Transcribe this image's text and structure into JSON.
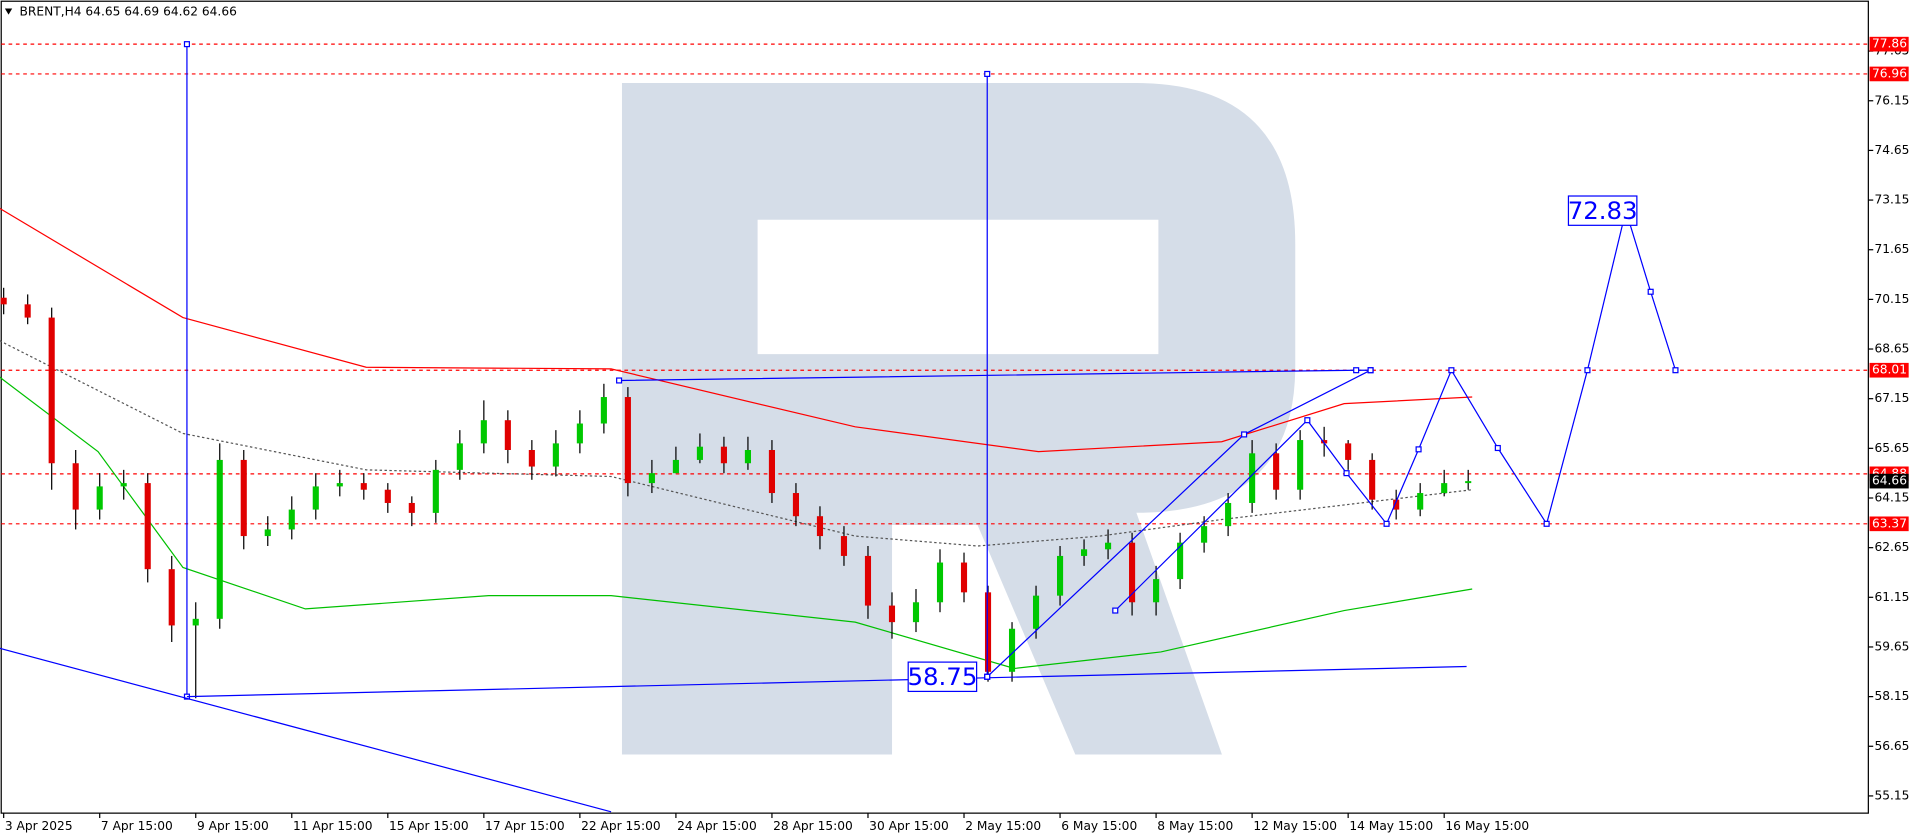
{
  "chart_data": {
    "type": "candlestick",
    "title": "BRENT,H4  64.65 64.69 64.62 64.66",
    "xlim": [
      0,
      233
    ],
    "xticks": [
      {
        "value": 0,
        "label": "3 Apr 2025"
      },
      {
        "value": 12,
        "label": "7 Apr 15:00"
      },
      {
        "value": 24,
        "label": "9 Apr 15:00"
      },
      {
        "value": 36,
        "label": "11 Apr 15:00"
      },
      {
        "value": 48,
        "label": "15 Apr 15:00"
      },
      {
        "value": 60,
        "label": "17 Apr 15:00"
      },
      {
        "value": 72,
        "label": "22 Apr 15:00"
      },
      {
        "value": 84,
        "label": "24 Apr 15:00"
      },
      {
        "value": 96,
        "label": "28 Apr 15:00"
      },
      {
        "value": 108,
        "label": "30 Apr 15:00"
      },
      {
        "value": 120,
        "label": "2 May 15:00"
      },
      {
        "value": 132,
        "label": "6 May 15:00"
      },
      {
        "value": 144,
        "label": "8 May 15:00"
      },
      {
        "value": 156,
        "label": "12 May 15:00"
      },
      {
        "value": 168,
        "label": "14 May 15:00"
      },
      {
        "value": 180,
        "label": "16 May 15:00"
      }
    ],
    "ylim": [
      54.63,
      79.12
    ],
    "yticks": [
      55.15,
      56.65,
      58.15,
      59.65,
      61.15,
      62.65,
      64.15,
      65.65,
      67.15,
      68.65,
      70.15,
      71.65,
      73.15,
      74.65,
      76.15,
      77.65
    ],
    "candles": {
      "up_color": "#00c800",
      "down_color": "#e00000",
      "x": [
        0,
        3,
        6,
        9,
        12,
        15,
        18,
        21,
        24,
        27,
        30,
        33,
        36,
        39,
        42,
        45,
        48,
        51,
        54,
        57,
        60,
        63,
        66,
        69,
        72,
        75,
        78,
        81,
        84,
        87,
        90,
        93,
        96,
        99,
        102,
        105,
        108,
        111,
        114,
        117,
        120,
        123,
        126,
        129,
        132,
        135,
        138,
        141,
        144,
        147,
        150,
        153,
        156,
        159,
        162,
        165,
        168,
        171,
        174,
        177,
        180,
        183
      ],
      "open": [
        70.2,
        70.0,
        69.6,
        65.2,
        63.8,
        64.5,
        64.6,
        62.0,
        60.3,
        60.5,
        65.3,
        63.0,
        63.2,
        63.8,
        64.5,
        64.6,
        64.4,
        64.0,
        63.7,
        65.0,
        65.8,
        66.5,
        65.6,
        65.1,
        65.8,
        66.4,
        67.2,
        64.6,
        64.9,
        65.3,
        65.7,
        65.2,
        65.6,
        64.3,
        63.6,
        63.0,
        62.4,
        60.9,
        60.4,
        61.0,
        62.2,
        61.3,
        58.9,
        60.2,
        61.2,
        62.4,
        62.6,
        62.8,
        61.0,
        61.7,
        62.8,
        63.3,
        64.0,
        65.5,
        64.4,
        65.9,
        65.8,
        65.3,
        64.1,
        63.8,
        64.3,
        64.6
      ],
      "high": [
        70.5,
        70.3,
        69.9,
        65.6,
        64.9,
        65.0,
        64.9,
        62.4,
        61.0,
        65.8,
        65.6,
        63.6,
        64.2,
        64.9,
        65.0,
        64.9,
        64.6,
        64.2,
        65.3,
        66.2,
        67.1,
        66.8,
        65.9,
        66.2,
        66.8,
        67.6,
        67.5,
        65.3,
        65.7,
        66.1,
        66.0,
        66.0,
        65.9,
        64.6,
        63.9,
        63.3,
        62.7,
        61.3,
        61.4,
        62.6,
        62.5,
        61.5,
        60.4,
        61.5,
        62.7,
        62.9,
        63.2,
        63.1,
        62.1,
        63.1,
        63.6,
        64.3,
        65.9,
        65.8,
        66.2,
        66.3,
        65.9,
        65.5,
        64.4,
        64.6,
        65.0,
        65.0
      ],
      "low": [
        69.7,
        69.4,
        64.4,
        63.2,
        63.5,
        64.1,
        61.6,
        59.8,
        58.1,
        60.2,
        62.6,
        62.7,
        62.9,
        63.5,
        64.2,
        64.1,
        63.7,
        63.3,
        63.4,
        64.7,
        65.5,
        65.2,
        64.7,
        64.8,
        65.5,
        66.1,
        64.2,
        64.3,
        64.9,
        65.2,
        64.9,
        65.0,
        64.0,
        63.3,
        62.6,
        62.1,
        60.5,
        59.9,
        60.1,
        60.7,
        61.0,
        58.6,
        58.6,
        59.9,
        60.9,
        62.1,
        62.3,
        60.6,
        60.6,
        61.4,
        62.5,
        63.0,
        63.7,
        64.1,
        64.1,
        65.4,
        65.0,
        63.8,
        63.5,
        63.6,
        64.2,
        64.4
      ],
      "close": [
        70.0,
        69.6,
        65.2,
        63.8,
        64.5,
        64.6,
        62.0,
        60.3,
        60.5,
        65.3,
        63.0,
        63.2,
        63.8,
        64.5,
        64.6,
        64.4,
        64.0,
        63.7,
        65.0,
        65.8,
        66.5,
        65.6,
        65.1,
        65.8,
        66.4,
        67.2,
        64.6,
        64.9,
        65.3,
        65.7,
        65.2,
        65.6,
        64.3,
        63.6,
        63.0,
        62.4,
        60.9,
        60.4,
        61.0,
        62.2,
        61.3,
        58.9,
        60.2,
        61.2,
        62.4,
        62.6,
        62.8,
        61.0,
        61.7,
        62.8,
        63.3,
        64.0,
        65.5,
        64.4,
        65.9,
        65.8,
        65.3,
        64.1,
        63.8,
        64.3,
        64.6,
        64.66
      ]
    },
    "moving_averages": [
      {
        "color": "#ff0000",
        "dashed": false,
        "x": [
          -0.5,
          22.4,
          45.3,
          75.9,
          106.4,
          129.3,
          152.2,
          167.5,
          183.5
        ],
        "values": [
          72.9,
          69.6,
          68.1,
          68.05,
          66.3,
          65.55,
          65.85,
          67.0,
          67.2
        ]
      },
      {
        "color": "#555555",
        "dashed": true,
        "x": [
          -0.5,
          22.4,
          45.3,
          75.9,
          106.4,
          121.7,
          137.0,
          152.2,
          183.5
        ],
        "values": [
          68.9,
          66.1,
          65.0,
          64.8,
          63.0,
          62.7,
          63.0,
          63.5,
          64.4
        ]
      },
      {
        "color": "#00c000",
        "dashed": false,
        "x": [
          -0.5,
          11.8,
          22.4,
          37.7,
          60.6,
          75.9,
          106.4,
          126.3,
          144.6,
          167.5,
          183.5
        ],
        "values": [
          67.8,
          65.55,
          62.05,
          60.8,
          61.2,
          61.2,
          60.4,
          59.0,
          59.5,
          60.75,
          61.4
        ]
      }
    ],
    "drawings": {
      "color": "#0000ff",
      "lines": [
        {
          "markers": true,
          "x": [
            22.9,
            22.9
          ],
          "values": [
            58.15,
            77.86
          ]
        },
        {
          "markers": true,
          "x": [
            122.9,
            122.9
          ],
          "values": [
            58.75,
            76.96
          ]
        },
        {
          "markers": true,
          "x": [
            76.9,
            169.0,
            170.8
          ],
          "values": [
            67.7,
            68.01,
            68.01
          ]
        },
        {
          "markers": false,
          "x": [
            22.9,
            182.8
          ],
          "values": [
            58.15,
            59.06
          ]
        },
        {
          "markers": false,
          "x": [
            -0.5,
            75.9
          ],
          "values": [
            59.61,
            54.67
          ]
        },
        {
          "markers": true,
          "x": [
            122.9,
            155.0,
            170.8
          ],
          "values": [
            58.75,
            66.07,
            68.01
          ]
        },
        {
          "markers": true,
          "x": [
            138.9,
            162.9,
            167.8,
            172.8,
            176.8,
            180.9,
            186.7,
            192.8,
            197.9,
            202.7,
            205.8,
            208.9
          ],
          "values": [
            60.75,
            66.5,
            64.9,
            63.37,
            65.62,
            68.01,
            65.66,
            63.37,
            68.01,
            72.83,
            70.38,
            68.01
          ]
        }
      ]
    },
    "annotations": [
      {
        "x": 199.8,
        "value": 72.83
      },
      {
        "x": 117.3,
        "value": 58.75
      }
    ],
    "levels": [
      77.86,
      76.96,
      68.01,
      64.88,
      63.37
    ],
    "level_color": "#ff0000",
    "current_price": 64.66
  }
}
